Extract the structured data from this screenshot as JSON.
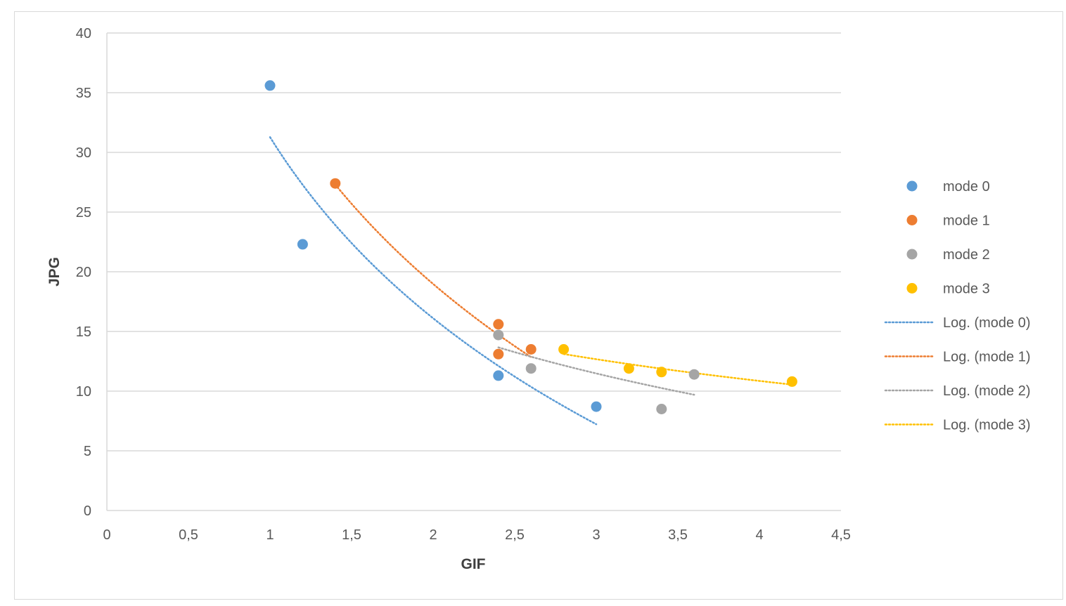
{
  "chart_data": {
    "type": "scatter",
    "title": "",
    "xlabel": "GIF",
    "ylabel": "JPG",
    "xlim": [
      0,
      4.5
    ],
    "ylim": [
      0,
      40
    ],
    "x_ticks": [
      "0",
      "0,5",
      "1",
      "1,5",
      "2",
      "2,5",
      "3",
      "3,5",
      "4",
      "4,5"
    ],
    "y_ticks": [
      "0",
      "5",
      "10",
      "15",
      "20",
      "25",
      "30",
      "35",
      "40"
    ],
    "grid": "horizontal",
    "legend_position": "right",
    "series": [
      {
        "name": "mode 0",
        "color": "#5b9bd5",
        "points": [
          [
            1.0,
            35.6
          ],
          [
            1.2,
            22.3
          ],
          [
            2.4,
            11.3
          ],
          [
            3.0,
            8.7
          ]
        ],
        "trendline": {
          "name": "Log. (mode 0)",
          "type": "logarithmic",
          "x_range": [
            1.0,
            3.0
          ]
        }
      },
      {
        "name": "mode 1",
        "color": "#ed7d31",
        "points": [
          [
            1.4,
            27.4
          ],
          [
            2.4,
            15.6
          ],
          [
            2.4,
            13.1
          ],
          [
            2.6,
            13.5
          ]
        ],
        "trendline": {
          "name": "Log. (mode 1)",
          "type": "logarithmic",
          "x_range": [
            1.4,
            2.6
          ]
        }
      },
      {
        "name": "mode 2",
        "color": "#a5a5a5",
        "points": [
          [
            2.4,
            14.7
          ],
          [
            2.6,
            11.9
          ],
          [
            3.4,
            8.5
          ],
          [
            3.6,
            11.4
          ]
        ],
        "trendline": {
          "name": "Log. (mode 2)",
          "type": "logarithmic",
          "x_range": [
            2.4,
            3.6
          ]
        }
      },
      {
        "name": "mode 3",
        "color": "#ffc000",
        "points": [
          [
            2.8,
            13.5
          ],
          [
            3.2,
            11.9
          ],
          [
            3.4,
            11.6
          ],
          [
            4.2,
            10.8
          ]
        ],
        "trendline": {
          "name": "Log. (mode 3)",
          "type": "logarithmic",
          "x_range": [
            2.8,
            4.2
          ]
        }
      }
    ],
    "legend": [
      "mode 0",
      "mode 1",
      "mode 2",
      "mode 3",
      "Log. (mode 0)",
      "Log. (mode 1)",
      "Log. (mode 2)",
      "Log. (mode 3)"
    ]
  }
}
